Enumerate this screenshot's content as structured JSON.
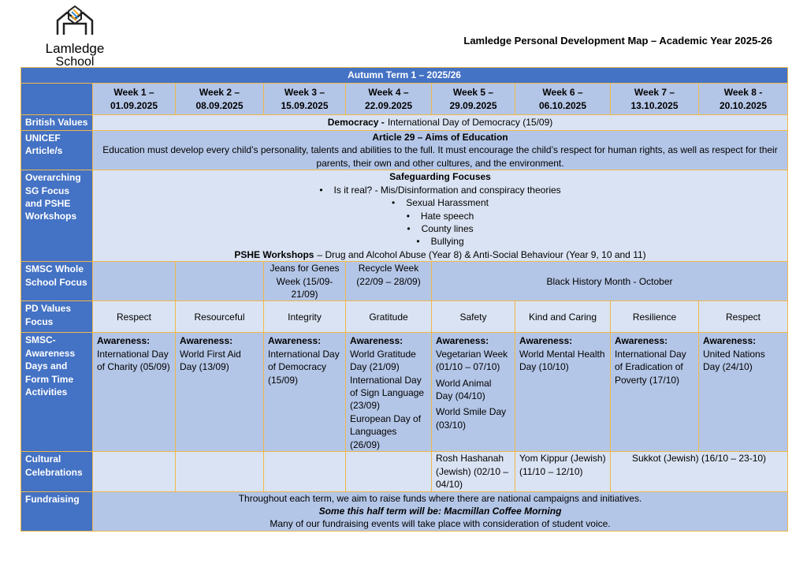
{
  "header": {
    "school": "Lamledge",
    "school_sub": "School",
    "title": "Lamledge Personal Development Map – Academic Year 2025-26"
  },
  "table": {
    "term": "Autumn Term 1 – 2025/26",
    "weeks": [
      {
        "label": "Week 1 –",
        "date": "01.09.2025"
      },
      {
        "label": "Week 2 –",
        "date": "08.09.2025"
      },
      {
        "label": "Week 3 –",
        "date": "15.09.2025"
      },
      {
        "label": "Week 4 –",
        "date": "22.09.2025"
      },
      {
        "label": "Week 5 –",
        "date": "29.09.2025"
      },
      {
        "label": "Week 6 –",
        "date": "06.10.2025"
      },
      {
        "label": "Week 7 –",
        "date": "13.10.2025"
      },
      {
        "label": "Week 8 -",
        "date": "20.10.2025"
      }
    ],
    "british_values": {
      "label": "British Values",
      "bold": "Democracy -",
      "text": "International Day of Democracy (15/09)"
    },
    "unicef": {
      "label": "UNICEF Article/s",
      "heading": "Article 29 – Aims of Education",
      "text": "Education must develop every child’s personality, talents and abilities to the full. It must encourage the child’s respect for human rights, as well as respect for their parents, their own and other cultures, and the environment."
    },
    "overarching": {
      "label": "Overarching SG Focus and PSHE Workshops",
      "heading": "Safeguarding Focuses",
      "bullets": [
        "Is it real? - Mis/Disinformation and conspiracy theories",
        "Sexual Harassment",
        "Hate speech",
        "County lines",
        "Bullying"
      ],
      "pshe_bold": "PSHE Workshops",
      "pshe_text": "– Drug and Alcohol Abuse (Year 8) & Anti-Social Behaviour (Year 9, 10 and 11)"
    },
    "smsc_whole": {
      "label": "SMSC Whole School Focus",
      "cells": [
        "Jeans for Genes Week (15/09-21/09)",
        "Recycle Week (22/09 – 28/09)",
        "Black History Month - October"
      ]
    },
    "pd_values": {
      "label": "PD Values Focus",
      "values": [
        "Respect",
        "Resourceful",
        "Integrity",
        "Gratitude",
        "Safety",
        "Kind and Caring",
        "Resilience",
        "Respect"
      ]
    },
    "awareness": {
      "label": "SMSC-Awareness Days and Form Time Activities",
      "heading": "Awareness:",
      "cells": [
        [
          "International Day of Charity (05/09)"
        ],
        [
          "World First Aid Day (13/09)"
        ],
        [
          "International Day of Democracy (15/09)"
        ],
        [
          "World Gratitude Day (21/09)",
          "International Day of Sign Language (23/09)",
          "European Day of Languages (26/09)"
        ],
        [
          "Vegetarian Week (01/10 – 07/10)",
          "World Animal Day (04/10)",
          "World Smile Day (03/10)"
        ],
        [
          "World Mental Health Day (10/10)"
        ],
        [
          "International Day of Eradication of Poverty (17/10)"
        ],
        [
          "United Nations Day (24/10)"
        ]
      ]
    },
    "cultural": {
      "label": "Cultural Celebrations",
      "cells": [
        "Rosh Hashanah (Jewish) (02/10 – 04/10)",
        "Yom Kippur (Jewish) (11/10 – 12/10)",
        "Sukkot (Jewish) (16/10 – 23-10)"
      ]
    },
    "fundraising": {
      "label": "Fundraising",
      "lines": [
        "Throughout each term, we aim to raise funds where there are national campaigns and initiatives.",
        "Some this half term will be: Macmillan Coffee Morning",
        "Many of our fundraising events will take place with consideration of student voice."
      ]
    }
  }
}
